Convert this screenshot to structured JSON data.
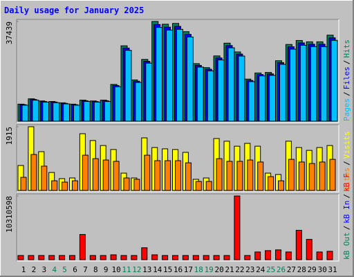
{
  "chart_data": [
    {
      "type": "bar",
      "title": "Daily usage for January 2025",
      "ylim": [
        0,
        37439
      ],
      "yticks": [
        37439
      ],
      "legend_separator": "/",
      "series": [
        {
          "name": "Hits",
          "color": "#00805c",
          "values": [
            6400,
            8400,
            7600,
            7400,
            6900,
            6400,
            7900,
            7600,
            7900,
            13800,
            28300,
            15500,
            23200,
            37439,
            36400,
            36700,
            33600,
            21600,
            20100,
            24500,
            29300,
            26000,
            15800,
            18100,
            18300,
            22700,
            28800,
            30300,
            29800,
            29800,
            32300
          ]
        },
        {
          "name": "Files",
          "color": "#0000ff",
          "values": [
            6200,
            8150,
            7370,
            7180,
            6700,
            6200,
            7660,
            7370,
            7660,
            13400,
            27450,
            15000,
            22500,
            36300,
            35300,
            35600,
            32600,
            20950,
            19500,
            23750,
            28400,
            25200,
            15300,
            17550,
            17750,
            22000,
            27950,
            29400,
            28900,
            28900,
            31300
          ]
        },
        {
          "name": "Pages",
          "color": "#00c0ff",
          "values": [
            6000,
            7900,
            7150,
            6950,
            6500,
            6000,
            7400,
            7150,
            7400,
            12950,
            26600,
            14550,
            21800,
            35200,
            34200,
            34500,
            31600,
            20300,
            18900,
            23000,
            27550,
            24450,
            14850,
            17000,
            17200,
            21350,
            27050,
            28500,
            28000,
            28000,
            30350
          ]
        }
      ]
    },
    {
      "type": "bar",
      "ylim": [
        0,
        1915
      ],
      "yticks": [
        1915
      ],
      "legend_separator": "/",
      "series": [
        {
          "name": "Visits",
          "color": "#ffff00",
          "values": [
            750,
            1915,
            1165,
            540,
            355,
            375,
            1705,
            1500,
            1350,
            1230,
            520,
            375,
            1580,
            1290,
            1250,
            1230,
            1145,
            335,
            375,
            1560,
            1480,
            1330,
            1415,
            1330,
            520,
            480,
            1480,
            1290,
            1205,
            1290,
            1350
          ]
        },
        {
          "name": "Sites",
          "color": "#ff8000",
          "values": [
            395,
            1080,
            730,
            290,
            250,
            290,
            1060,
            955,
            915,
            875,
            375,
            335,
            1060,
            895,
            895,
            895,
            830,
            270,
            270,
            955,
            875,
            875,
            915,
            855,
            415,
            290,
            935,
            855,
            810,
            855,
            935
          ]
        }
      ]
    },
    {
      "type": "bar",
      "ylim": [
        0,
        10310598
      ],
      "yticks": [
        10310598
      ],
      "legend_separator": "/",
      "categories": [
        "1",
        "2",
        "3",
        "4",
        "5",
        "6",
        "7",
        "8",
        "9",
        "10",
        "11",
        "12",
        "13",
        "14",
        "15",
        "16",
        "17",
        "18",
        "19",
        "20",
        "21",
        "22",
        "23",
        "24",
        "25",
        "26",
        "27",
        "28",
        "29",
        "30",
        "31"
      ],
      "category_colors": [
        "#000000",
        "#000000",
        "#000000",
        "#00805c",
        "#00805c",
        "#000000",
        "#000000",
        "#000000",
        "#000000",
        "#000000",
        "#00805c",
        "#00805c",
        "#000000",
        "#000000",
        "#000000",
        "#000000",
        "#000000",
        "#00805c",
        "#00805c",
        "#000000",
        "#000000",
        "#000000",
        "#000000",
        "#000000",
        "#00805c",
        "#00805c",
        "#000000",
        "#000000",
        "#000000",
        "#000000",
        "#000000"
      ],
      "series": [
        {
          "name": "kB F",
          "color": "#ff0000",
          "values": [
            680000,
            680000,
            680000,
            680000,
            680000,
            680000,
            4080000,
            680000,
            680000,
            790000,
            680000,
            680000,
            1930000,
            790000,
            680000,
            680000,
            680000,
            680000,
            680000,
            680000,
            680000,
            10310598,
            680000,
            1250000,
            1470000,
            1590000,
            1250000,
            4760000,
            3290000,
            1250000,
            1360000
          ]
        },
        {
          "name": "kB In",
          "color": "#0000ff",
          "values": [
            0,
            0,
            0,
            0,
            0,
            0,
            0,
            0,
            0,
            0,
            0,
            0,
            0,
            0,
            0,
            0,
            0,
            0,
            0,
            0,
            0,
            0,
            0,
            0,
            0,
            0,
            0,
            0,
            0,
            0,
            0
          ]
        },
        {
          "name": "kB Out",
          "color": "#00805c",
          "values": [
            0,
            0,
            0,
            0,
            0,
            0,
            0,
            0,
            0,
            0,
            0,
            0,
            0,
            0,
            0,
            0,
            0,
            0,
            0,
            0,
            0,
            0,
            0,
            0,
            0,
            0,
            0,
            0,
            0,
            0,
            0
          ]
        }
      ]
    }
  ]
}
